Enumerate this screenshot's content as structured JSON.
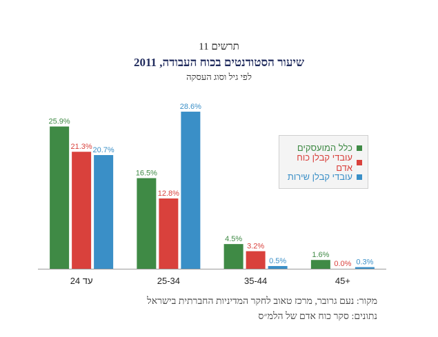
{
  "header": {
    "figure_label": "תרשים 11",
    "title": "שיעור הסטודנטים בכוח העבודה, 2011",
    "subtitle": "לפי גיל וסוג העסקה"
  },
  "chart_data": {
    "type": "bar",
    "title": "שיעור הסטודנטים בכוח העבודה, 2011",
    "subtitle": "לפי גיל וסוג העסקה",
    "categories": [
      "עד 24",
      "25-34",
      "35-44",
      "45+"
    ],
    "series": [
      {
        "name": "כלל המועסקים",
        "color": "#3f8a45",
        "values": [
          25.9,
          16.5,
          4.5,
          1.6
        ],
        "labels": [
          "25.9%",
          "16.5%",
          "4.5%",
          "1.6%"
        ]
      },
      {
        "name": "עובדי קבלן כוח אדם",
        "color": "#d9413c",
        "values": [
          21.3,
          12.8,
          3.2,
          0.0
        ],
        "labels": [
          "21.3%",
          "12.8%",
          "3.2%",
          "0.0%"
        ]
      },
      {
        "name": "עובדי קבלן שירות",
        "color": "#3a8fc7",
        "values": [
          20.7,
          28.6,
          0.5,
          0.3
        ],
        "labels": [
          "20.7%",
          "28.6%",
          "0.5%",
          "0.3%"
        ]
      }
    ],
    "ylim": [
      0,
      30
    ],
    "grid": false,
    "legend_position": "right"
  },
  "source": {
    "line1": "מקור: נעם גרובר, מרכז טאוב לחקר המדיניות החברתית בישראל",
    "line2": "נתונים: סקר כוח אדם של הלמ״ס"
  }
}
